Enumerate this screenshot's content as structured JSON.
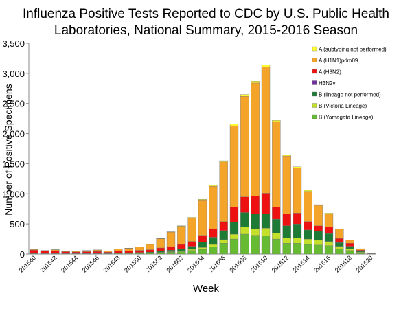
{
  "chart_data": {
    "type": "stacked_bar",
    "title": [
      "Influenza Positive Tests Reported to CDC by U.S. Public Health",
      "Laboratories, National Summary, 2015-2016 Season"
    ],
    "x_label": "Week",
    "y_label": "Number of Positive Specimens",
    "categories": [
      "201540",
      null,
      "201542",
      null,
      "201544",
      null,
      "201546",
      null,
      "201548",
      null,
      "201550",
      null,
      "201552",
      null,
      "201602",
      null,
      "201604",
      null,
      "201606",
      null,
      "201608",
      null,
      "201610",
      null,
      "201612",
      null,
      "201614",
      null,
      "201616",
      null,
      "201618",
      null,
      "201620"
    ],
    "ylim": [
      0,
      3500
    ],
    "yticks": [
      0,
      500,
      {
        "value": 1000,
        "label": "1,000"
      },
      {
        "value": 1500,
        "label": "1,500"
      },
      {
        "value": 2000,
        "label": "2,000"
      },
      {
        "value": 2500,
        "label": "2,500"
      },
      {
        "value": 3000,
        "label": "3,000"
      },
      {
        "value": 3500,
        "label": "3,500"
      }
    ],
    "legend": "top-right",
    "series": [
      {
        "name": "A (subtyping not performed)",
        "color": "#ffff33",
        "values": [
          3,
          2,
          3,
          2,
          2,
          2,
          2,
          2,
          2,
          3,
          3,
          4,
          5,
          5,
          7,
          8,
          10,
          15,
          20,
          30,
          30,
          30,
          30,
          20,
          20,
          20,
          20,
          10,
          10,
          5,
          0,
          5,
          2
        ]
      },
      {
        "name": "A (H1N1)pdm09",
        "color": "#f5a42a",
        "values": [
          10,
          10,
          15,
          13,
          13,
          18,
          24,
          21,
          35,
          45,
          55,
          88,
          152,
          240,
          303,
          392,
          590,
          705,
          990,
          1350,
          1670,
          1880,
          2100,
          1420,
          960,
          750,
          500,
          340,
          220,
          155,
          50,
          20,
          5
        ]
      },
      {
        "name": "A (H3N2)",
        "color": "#ee1111",
        "values": [
          55,
          38,
          45,
          30,
          25,
          28,
          30,
          20,
          30,
          30,
          35,
          40,
          55,
          60,
          70,
          80,
          110,
          140,
          150,
          250,
          260,
          290,
          340,
          200,
          200,
          180,
          140,
          90,
          110,
          70,
          50,
          15,
          3
        ]
      },
      {
        "name": "H3N2v",
        "color": "#7030a0",
        "values": [
          0,
          0,
          0,
          0,
          0,
          0,
          0,
          0,
          0,
          0,
          0,
          0,
          0,
          0,
          0,
          0,
          0,
          0,
          0,
          0,
          0,
          0,
          0,
          0,
          0,
          0,
          0,
          0,
          0,
          0,
          0,
          0,
          0
        ]
      },
      {
        "name": "B (lineage not performed)",
        "color": "#1e7b36",
        "values": [
          5,
          4,
          5,
          4,
          4,
          5,
          6,
          5,
          7,
          8,
          10,
          12,
          20,
          25,
          35,
          50,
          90,
          120,
          150,
          200,
          240,
          250,
          240,
          230,
          200,
          230,
          150,
          150,
          130,
          60,
          40,
          15,
          3
        ]
      },
      {
        "name": "B (Victoria Lineage)",
        "color": "#c4e02a",
        "values": [
          2,
          2,
          2,
          2,
          2,
          2,
          3,
          2,
          3,
          4,
          5,
          6,
          8,
          10,
          15,
          20,
          30,
          40,
          60,
          80,
          120,
          110,
          130,
          100,
          90,
          90,
          90,
          80,
          70,
          40,
          30,
          10,
          2
        ]
      },
      {
        "name": "B (Yamagata Lineage)",
        "color": "#66bb33",
        "values": [
          5,
          4,
          5,
          4,
          4,
          5,
          5,
          5,
          8,
          10,
          12,
          15,
          20,
          30,
          40,
          60,
          80,
          120,
          180,
          250,
          330,
          310,
          300,
          250,
          180,
          180,
          160,
          150,
          140,
          90,
          60,
          25,
          5
        ]
      }
    ]
  }
}
